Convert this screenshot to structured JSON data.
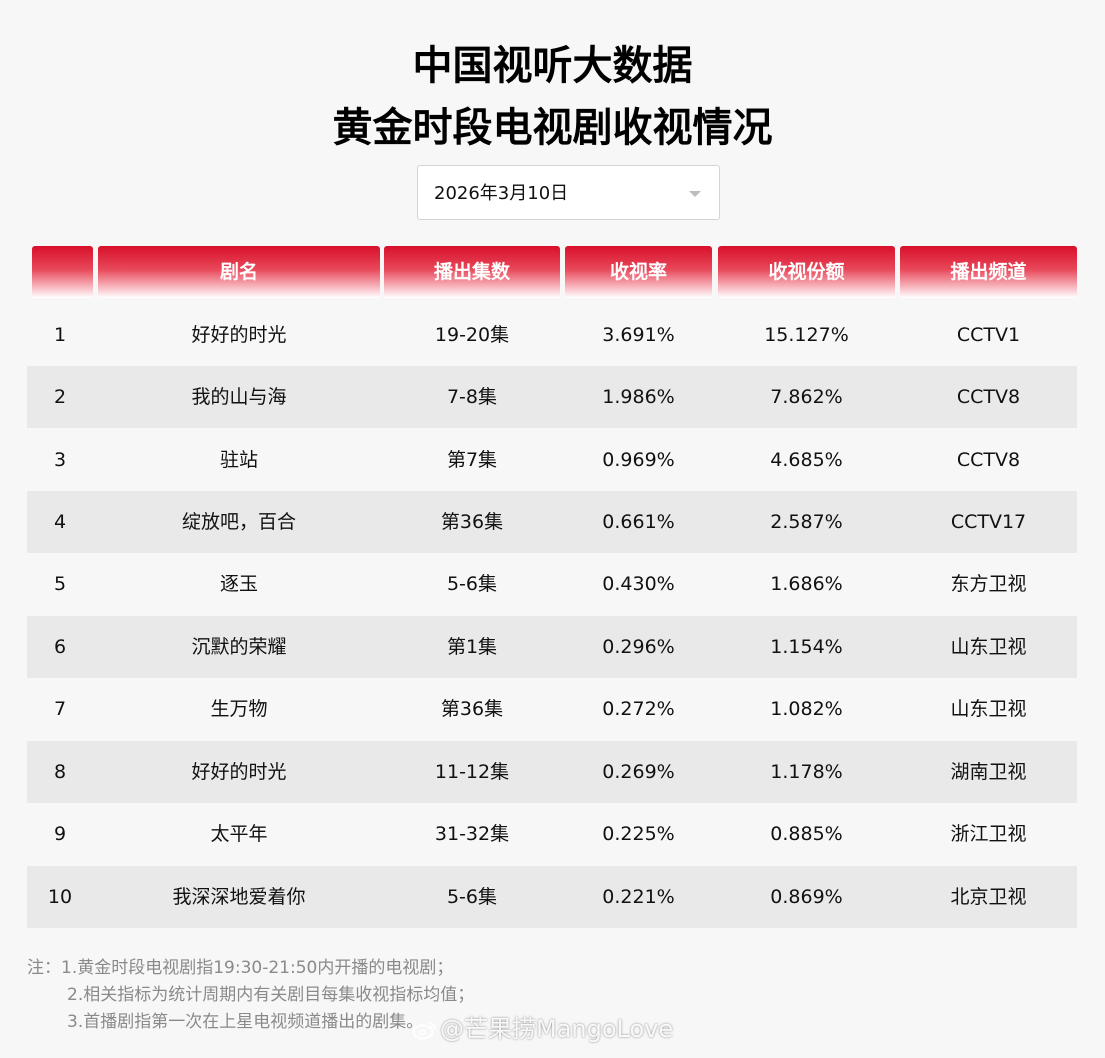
{
  "header": {
    "title_line1": "中国视听大数据",
    "title_line2": "黄金时段电视剧收视情况"
  },
  "date_select": {
    "value": "2026年3月10日"
  },
  "table": {
    "columns": [
      "",
      "剧名",
      "播出集数",
      "收视率",
      "收视份额",
      "播出频道"
    ],
    "rows": [
      [
        "1",
        "好好的时光",
        "19-20集",
        "3.691%",
        "15.127%",
        "CCTV1"
      ],
      [
        "2",
        "我的山与海",
        "7-8集",
        "1.986%",
        "7.862%",
        "CCTV8"
      ],
      [
        "3",
        "驻站",
        "第7集",
        "0.969%",
        "4.685%",
        "CCTV8"
      ],
      [
        "4",
        "绽放吧，百合",
        "第36集",
        "0.661%",
        "2.587%",
        "CCTV17"
      ],
      [
        "5",
        "逐玉",
        "5-6集",
        "0.430%",
        "1.686%",
        "东方卫视"
      ],
      [
        "6",
        "沉默的荣耀",
        "第1集",
        "0.296%",
        "1.154%",
        "山东卫视"
      ],
      [
        "7",
        "生万物",
        "第36集",
        "0.272%",
        "1.082%",
        "山东卫视"
      ],
      [
        "8",
        "好好的时光",
        "11-12集",
        "0.269%",
        "1.178%",
        "湖南卫视"
      ],
      [
        "9",
        "太平年",
        "31-32集",
        "0.225%",
        "0.885%",
        "浙江卫视"
      ],
      [
        "10",
        "我深深地爱着你",
        "5-6集",
        "0.221%",
        "0.869%",
        "北京卫视"
      ]
    ]
  },
  "notes": {
    "line1": "注：1.黄金时段电视剧指19:30-21:50内开播的电视剧；",
    "line2": "2.相关指标为统计周期内有关剧目每集收视指标均值；",
    "line3": "3.首播剧指第一次在上星电视频道播出的剧集。"
  },
  "watermark": {
    "text": "@芒果捞MangoLove",
    "icon": "weibo-icon"
  },
  "colors": {
    "header_red": "#d8102a",
    "stripe": "#e9e9e9",
    "background": "#f7f7f7"
  }
}
